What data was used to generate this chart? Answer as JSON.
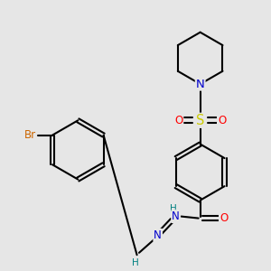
{
  "background_color": "#e6e6e6",
  "atom_colors": {
    "C": "#000000",
    "N": "#0000cc",
    "O": "#ff0000",
    "S": "#cccc00",
    "Br": "#cc6600",
    "H": "#008080"
  },
  "bond_color": "#000000",
  "bond_width": 1.5,
  "font_size_atom": 8.5
}
